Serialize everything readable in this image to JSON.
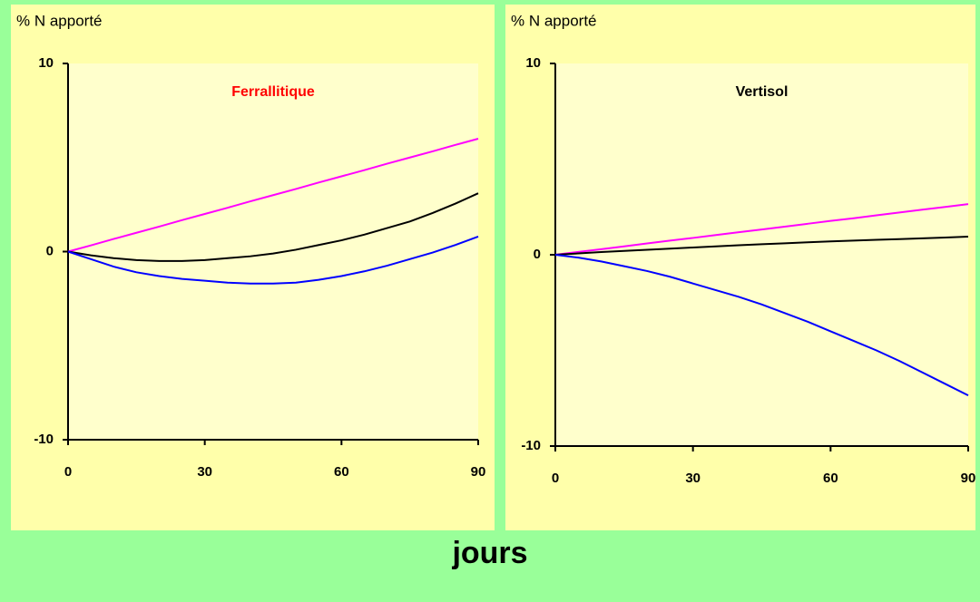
{
  "chart_data": [
    {
      "type": "line",
      "title": "Ferrallitique",
      "title_color": "#ff0000",
      "ylabel": "% N apporté",
      "x": [
        0,
        5,
        10,
        15,
        20,
        25,
        30,
        35,
        40,
        45,
        50,
        55,
        60,
        65,
        70,
        75,
        80,
        85,
        90
      ],
      "xlim": [
        0,
        90
      ],
      "xticks": [
        0,
        30,
        60,
        90
      ],
      "ylim": [
        -10,
        10
      ],
      "yticks": [
        -10,
        0,
        10
      ],
      "series": [
        {
          "color": "#ff00ff",
          "values": [
            0,
            0.33,
            0.67,
            1,
            1.33,
            1.67,
            2,
            2.33,
            2.67,
            3,
            3.33,
            3.67,
            4,
            4.33,
            4.67,
            5,
            5.33,
            5.67,
            6
          ]
        },
        {
          "color": "#000000",
          "values": [
            0,
            -0.2,
            -0.35,
            -0.45,
            -0.5,
            -0.5,
            -0.45,
            -0.35,
            -0.25,
            -0.1,
            0.1,
            0.35,
            0.6,
            0.9,
            1.25,
            1.6,
            2.05,
            2.55,
            3.1
          ]
        },
        {
          "color": "#0000ff",
          "values": [
            0,
            -0.4,
            -0.8,
            -1.1,
            -1.3,
            -1.45,
            -1.55,
            -1.65,
            -1.7,
            -1.7,
            -1.65,
            -1.5,
            -1.3,
            -1.05,
            -0.75,
            -0.4,
            -0.05,
            0.35,
            0.8
          ]
        }
      ]
    },
    {
      "type": "line",
      "title": "Vertisol",
      "title_color": "#000000",
      "ylabel": "% N apporté",
      "x": [
        0,
        5,
        10,
        15,
        20,
        25,
        30,
        35,
        40,
        45,
        50,
        55,
        60,
        65,
        70,
        75,
        80,
        85,
        90
      ],
      "xlim": [
        0,
        90
      ],
      "xticks": [
        0,
        30,
        60,
        90
      ],
      "ylim": [
        -10,
        10
      ],
      "yticks": [
        -10,
        0,
        10
      ],
      "series": [
        {
          "color": "#ff00ff",
          "values": [
            0,
            0.15,
            0.29,
            0.44,
            0.59,
            0.74,
            0.88,
            1.03,
            1.18,
            1.32,
            1.47,
            1.62,
            1.77,
            1.91,
            2.06,
            2.21,
            2.36,
            2.5,
            2.65
          ]
        },
        {
          "color": "#000000",
          "values": [
            0,
            0.07,
            0.14,
            0.2,
            0.26,
            0.32,
            0.38,
            0.44,
            0.5,
            0.55,
            0.6,
            0.65,
            0.7,
            0.74,
            0.78,
            0.82,
            0.86,
            0.9,
            0.95
          ]
        },
        {
          "color": "#0000ff",
          "values": [
            0,
            -0.15,
            -0.35,
            -0.6,
            -0.85,
            -1.15,
            -1.5,
            -1.85,
            -2.2,
            -2.6,
            -3.05,
            -3.5,
            -4.0,
            -4.5,
            -5.0,
            -5.55,
            -6.15,
            -6.75,
            -7.35
          ]
        }
      ]
    }
  ],
  "xlabel": "jours"
}
